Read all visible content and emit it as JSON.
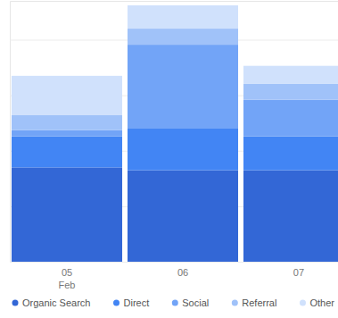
{
  "chart_data": {
    "type": "bar",
    "stacked": true,
    "grid": true,
    "legend": "bottom",
    "tick_labels": "x",
    "categories": [
      "05 Feb",
      "06",
      "07"
    ],
    "ylim": [
      0,
      47
    ],
    "yticks": [
      0,
      10,
      20,
      30,
      40
    ],
    "series": [
      {
        "name": "Organic Search",
        "color": "#3367d6",
        "values": [
          17,
          16.5,
          16.5
        ]
      },
      {
        "name": "Direct",
        "color": "#4285f4",
        "values": [
          5.6,
          7.6,
          6.1
        ]
      },
      {
        "name": "Social",
        "color": "#72a4f7",
        "values": [
          1.1,
          15,
          6.6
        ]
      },
      {
        "name": "Referral",
        "color": "#a0c2f9",
        "values": [
          2.7,
          2.9,
          2.9
        ]
      },
      {
        "name": "Other",
        "color": "#d0e1fc",
        "values": [
          7.1,
          4.2,
          3.2
        ]
      }
    ]
  }
}
